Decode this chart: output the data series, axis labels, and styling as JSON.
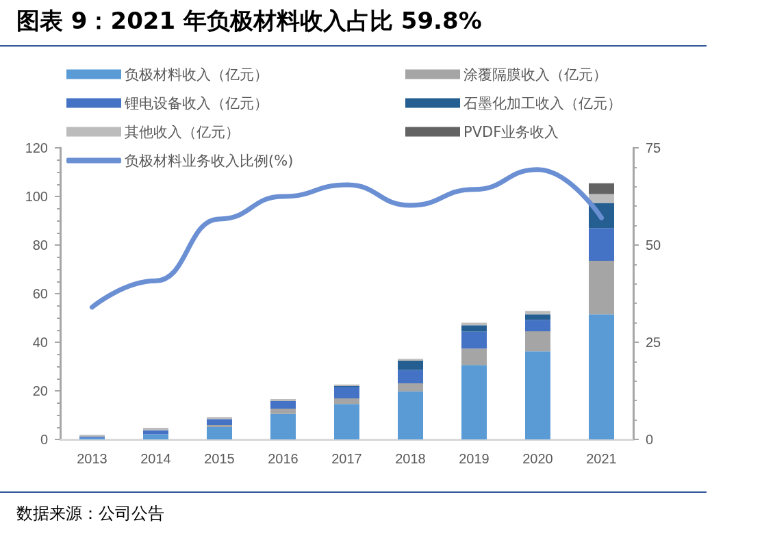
{
  "chart_data": {
    "type": "bar",
    "title": "图表 9：2021 年负极材料收入占比 59.8%",
    "categories": [
      "2013",
      "2014",
      "2015",
      "2016",
      "2017",
      "2018",
      "2019",
      "2020",
      "2021"
    ],
    "stacked": true,
    "series": [
      {
        "name": "负极材料收入（亿元）",
        "color": "#5b9bd5",
        "values": [
          0.6,
          2.1,
          5.1,
          10.5,
          14.6,
          19.8,
          30.6,
          36.3,
          51.5
        ]
      },
      {
        "name": "涂覆隔膜收入（亿元）",
        "color": "#a5a5a5",
        "values": [
          0,
          null,
          0.8,
          2.2,
          2.3,
          3.3,
          6.8,
          8.2,
          22.0
        ]
      },
      {
        "name": "锂电设备收入（亿元）",
        "color": "#4472c4",
        "values": [
          0.5,
          1.7,
          2.5,
          3.1,
          4.8,
          5.5,
          7.0,
          4.7,
          13.5
        ]
      },
      {
        "name": "石墨化加工收入（亿元）",
        "color": "#255e91",
        "values": [
          0,
          0,
          0,
          0,
          0.3,
          3.8,
          2.6,
          2.3,
          10.3
        ]
      },
      {
        "name": "其他收入（亿元）",
        "color": "#bcbcbc",
        "values": [
          0.8,
          1.0,
          0.8,
          0.8,
          0.6,
          0.8,
          1.0,
          1.4,
          3.7
        ]
      },
      {
        "name": "PVDF业务收入",
        "color": "#636363",
        "values": [
          null,
          null,
          null,
          null,
          null,
          null,
          null,
          null,
          4.4
        ]
      },
      {
        "name": "负极材料业务收入比例(%)",
        "type": "line",
        "axis": "y2",
        "color": "#6a8fd3",
        "values": [
          34.0,
          40.8,
          56.7,
          62.5,
          65.5,
          60.2,
          64.3,
          69.4,
          57.0
        ]
      }
    ],
    "ylim": [
      0,
      120
    ],
    "yticks": [
      0,
      20,
      40,
      60,
      80,
      100,
      120
    ],
    "y2lim": [
      0,
      75
    ],
    "y2ticks": [
      0,
      25,
      50,
      75
    ],
    "legend": "top",
    "marker": "none",
    "line_style": "solid",
    "annotations": [
      "数据来源：公司公告"
    ]
  }
}
